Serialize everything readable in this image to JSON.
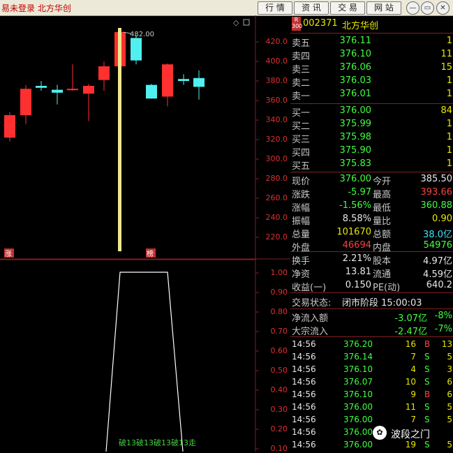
{
  "topbar": {
    "title": "易未登录  北方华创",
    "buttons": [
      "行 情",
      "资 讯",
      "交 易",
      "网 站"
    ],
    "icons": [
      "minimize-icon",
      "restore-icon",
      "close-icon"
    ]
  },
  "kline": {
    "price_labels": [
      "420.0",
      "400.0",
      "380.0",
      "360.0",
      "340.0",
      "320.0",
      "300.0",
      "280.0",
      "260.0",
      "240.0",
      "220.0"
    ],
    "peak_label": "482.00",
    "marker_zhang": "涨",
    "marker_bang": "榜"
  },
  "indicator": {
    "labels": [
      "1.00",
      "0.90",
      "0.80",
      "0.70",
      "0.60",
      "0.50",
      "0.40",
      "0.30",
      "0.20",
      "0.10"
    ],
    "bottom_text": "破13破13破13破13走"
  },
  "quote": {
    "badge_top": "R",
    "badge_bottom": "300",
    "code": "002371",
    "name": "北方华创",
    "asks": [
      {
        "label": "卖五",
        "price": "376.11",
        "vol": "1"
      },
      {
        "label": "卖四",
        "price": "376.10",
        "vol": "11"
      },
      {
        "label": "卖三",
        "price": "376.06",
        "vol": "15"
      },
      {
        "label": "卖二",
        "price": "376.03",
        "vol": "1"
      },
      {
        "label": "卖一",
        "price": "376.01",
        "vol": "1"
      }
    ],
    "bids": [
      {
        "label": "买一",
        "price": "376.00",
        "vol": "84"
      },
      {
        "label": "买二",
        "price": "375.99",
        "vol": "1"
      },
      {
        "label": "买三",
        "price": "375.98",
        "vol": "1"
      },
      {
        "label": "买四",
        "price": "375.90",
        "vol": "1"
      },
      {
        "label": "买五",
        "price": "375.83",
        "vol": "1"
      }
    ],
    "stats": [
      {
        "l1": "现价",
        "v1": "376.00",
        "l2": "今开",
        "v2": "385.50"
      },
      {
        "l1": "涨跌",
        "v1": "-5.97",
        "l2": "最高",
        "v2": "393.66"
      },
      {
        "l1": "涨幅",
        "v1": "-1.56%",
        "l2": "最低",
        "v2": "360.88"
      },
      {
        "l1": "振幅",
        "v1": "8.58%",
        "l2": "量比",
        "v2": "0.90"
      },
      {
        "l1": "总量",
        "v1": "101670",
        "l2": "总额",
        "v2": "38.0亿"
      },
      {
        "l1": "外盘",
        "v1": "46694",
        "l2": "内盘",
        "v2": "54976"
      }
    ],
    "stats2": [
      {
        "l1": "换手",
        "v1": "2.21%",
        "l2": "股本",
        "v2": "4.97亿"
      },
      {
        "l1": "净资",
        "v1": "13.81",
        "l2": "流通",
        "v2": "4.59亿"
      },
      {
        "l1": "收益(一)",
        "v1": "0.150",
        "l2": "PE(动)",
        "v2": "640.2"
      }
    ],
    "status_label": "交易状态:",
    "status_value": "闭市阶段 15:00:03",
    "flows": [
      {
        "label": "净流入额",
        "value": "-3.07亿",
        "pct": "-8%"
      },
      {
        "label": "大宗流入",
        "value": "-2.47亿",
        "pct": "-7%"
      }
    ],
    "ticks": [
      {
        "time": "14:56",
        "price": "376.20",
        "vol": "16",
        "side": "B",
        "extra": "13"
      },
      {
        "time": "14:56",
        "price": "376.14",
        "vol": "7",
        "side": "S",
        "extra": "5"
      },
      {
        "time": "14:56",
        "price": "376.10",
        "vol": "4",
        "side": "S",
        "extra": "3"
      },
      {
        "time": "14:56",
        "price": "376.07",
        "vol": "10",
        "side": "S",
        "extra": "6"
      },
      {
        "time": "14:56",
        "price": "376.10",
        "vol": "9",
        "side": "B",
        "extra": "6"
      },
      {
        "time": "14:56",
        "price": "376.00",
        "vol": "11",
        "side": "S",
        "extra": "5"
      },
      {
        "time": "14:56",
        "price": "376.00",
        "vol": "7",
        "side": "S",
        "extra": "5"
      },
      {
        "time": "14:56",
        "price": "376.00",
        "vol": "",
        "side": "",
        "extra": ""
      },
      {
        "time": "14:56",
        "price": "376.00",
        "vol": "19",
        "side": "S",
        "extra": "5"
      }
    ],
    "watermark": "波段之门"
  },
  "colors": {
    "up": "#ff4040",
    "down": "#40ff40",
    "grid": "#802020",
    "bg": "#000000"
  }
}
